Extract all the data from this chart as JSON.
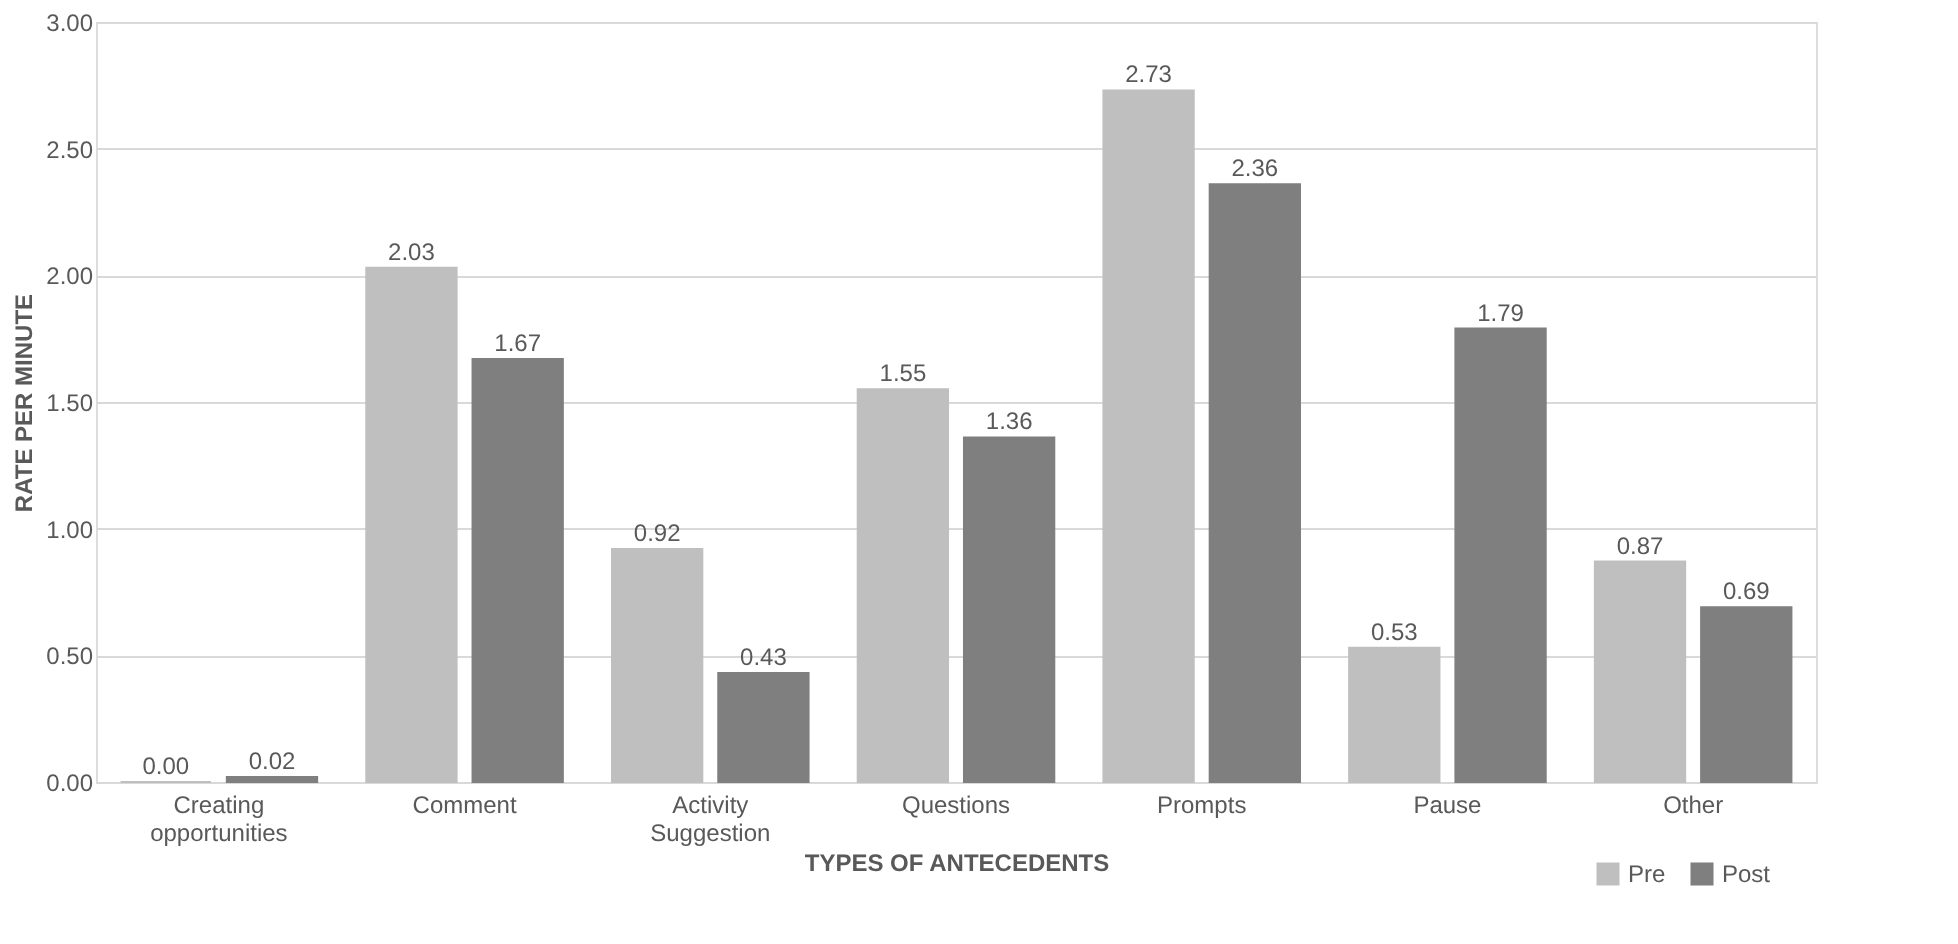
{
  "chart_data": {
    "type": "bar",
    "xlabel": "TYPES OF ANTECEDENTS",
    "ylabel": "RATE PER MINUTE",
    "categories": [
      "Creating opportunities",
      "Comment",
      "Activity Suggestion",
      "Questions",
      "Prompts",
      "Pause",
      "Other"
    ],
    "series": [
      {
        "name": "Pre",
        "color": "#bfbfbf",
        "values": [
          0.0,
          2.03,
          0.92,
          1.55,
          2.73,
          0.53,
          0.87
        ],
        "value_labels": [
          "0.00",
          "2.03",
          "0.92",
          "1.55",
          "2.73",
          "0.53",
          "0.87"
        ]
      },
      {
        "name": "Post",
        "color": "#7f7f7f",
        "values": [
          0.02,
          1.67,
          0.43,
          1.36,
          2.36,
          1.79,
          0.69
        ],
        "value_labels": [
          "0.02",
          "1.67",
          "0.43",
          "1.36",
          "2.36",
          "1.79",
          "0.69"
        ]
      }
    ],
    "ylim": [
      0,
      3
    ],
    "yticks": [
      {
        "value": 0,
        "label": "0.00"
      },
      {
        "value": 0.5,
        "label": "0.50"
      },
      {
        "value": 1,
        "label": "1.00"
      },
      {
        "value": 1.5,
        "label": "1.50"
      },
      {
        "value": 2,
        "label": "2.00"
      },
      {
        "value": 2.5,
        "label": "2.50"
      },
      {
        "value": 3,
        "label": "3.00"
      }
    ],
    "grid": "y",
    "legend": "bottom right"
  }
}
